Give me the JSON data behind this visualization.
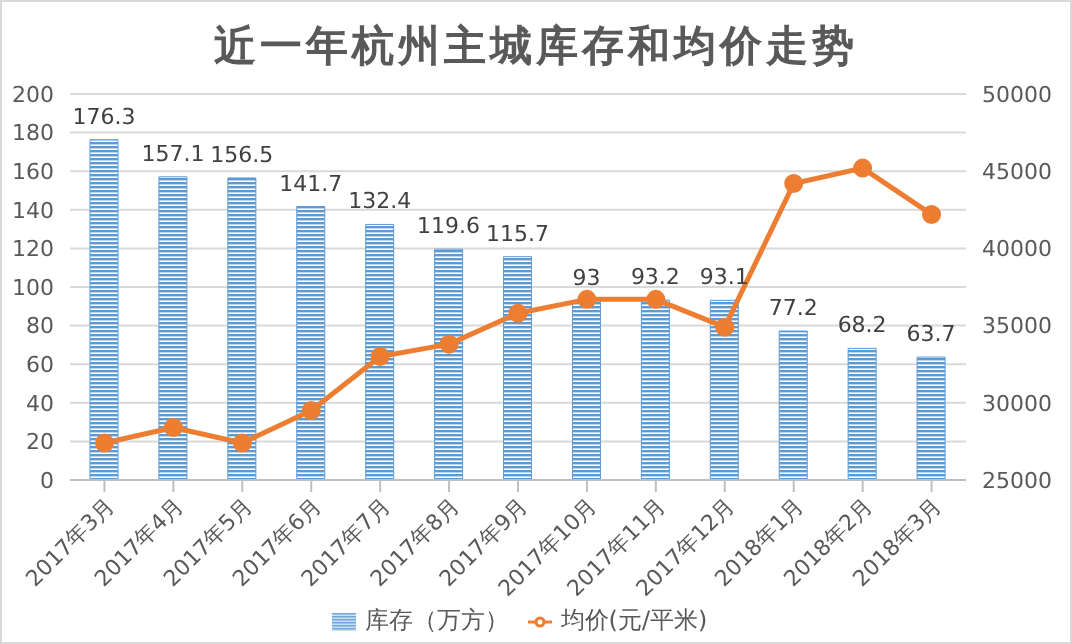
{
  "chart_data": {
    "type": "bar",
    "title": "近一年杭州主城库存和均价走势",
    "categories": [
      "2017年3月",
      "2017年4月",
      "2017年5月",
      "2017年6月",
      "2017年7月",
      "2017年8月",
      "2017年9月",
      "2017年10月",
      "2017年11月",
      "2017年12月",
      "2018年1月",
      "2018年2月",
      "2018年3月"
    ],
    "series": [
      {
        "name": "库存（万方）",
        "color": "#5b9bd5",
        "values": [
          176.3,
          157.1,
          156.5,
          141.7,
          132.4,
          119.6,
          115.7,
          93,
          93.2,
          93.1,
          77.2,
          68.2,
          63.7
        ],
        "value_labels": [
          "176.3",
          "157.1",
          "156.5",
          "141.7",
          "132.4",
          "119.6",
          "115.7",
          "93",
          "93.2",
          "93.1",
          "77.2",
          "68.2",
          "63.7"
        ]
      },
      {
        "name": "均价(元/平米)",
        "type": "line",
        "axis": "y2",
        "color": "#ed7d31",
        "marker": "circle",
        "values": [
          27400,
          28400,
          27400,
          29500,
          33000,
          33800,
          35800,
          36700,
          36700,
          34900,
          44200,
          45200,
          42200
        ]
      }
    ],
    "ylim": [
      0,
      200
    ],
    "yticks": [
      0,
      20,
      40,
      60,
      80,
      100,
      120,
      140,
      160,
      180,
      200
    ],
    "y2lim": [
      25000,
      50000
    ],
    "y2ticks": [
      25000,
      30000,
      35000,
      40000,
      45000,
      50000
    ],
    "grid": "y",
    "legend": "bottom"
  }
}
